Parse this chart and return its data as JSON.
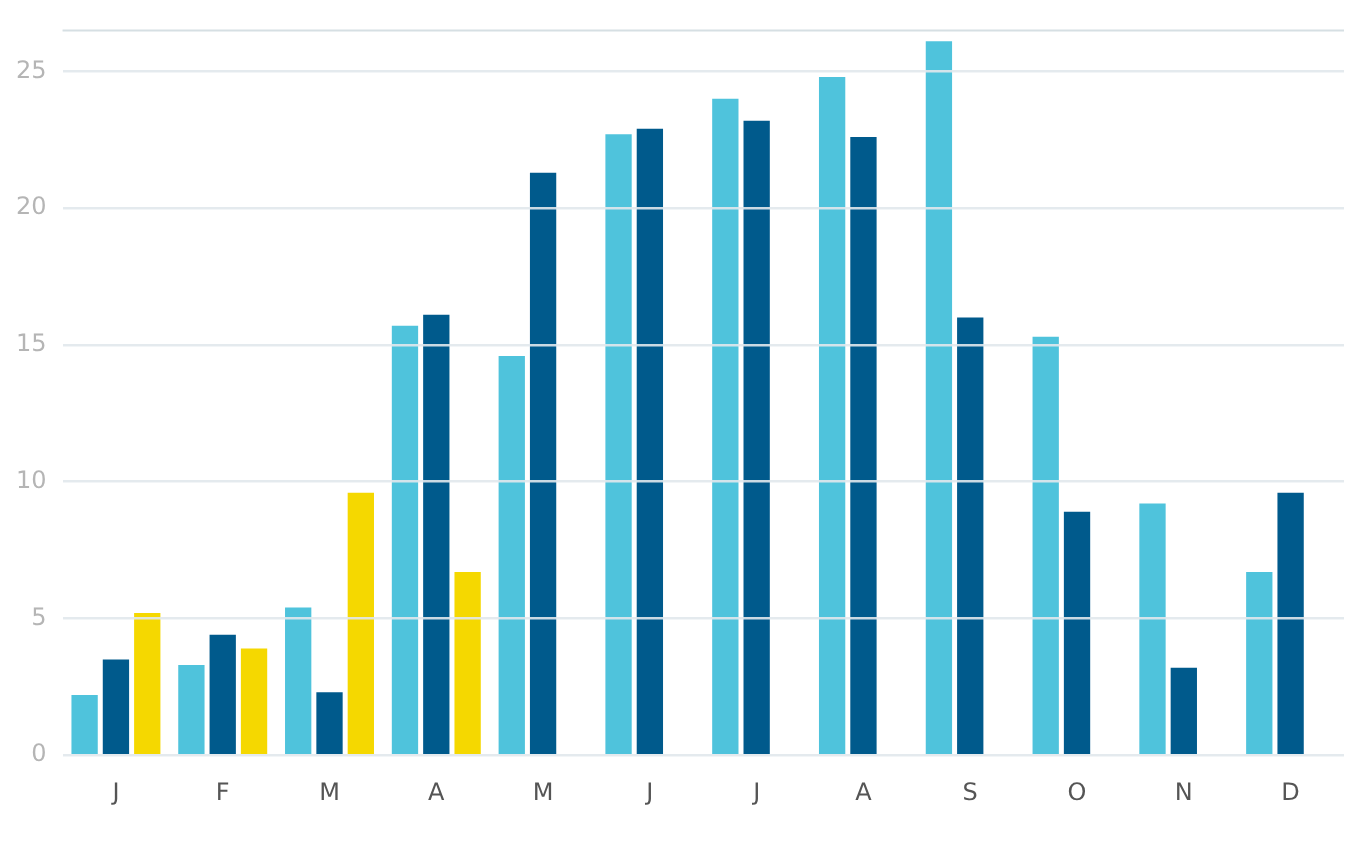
{
  "chart_data": {
    "type": "bar",
    "categories": [
      "J",
      "F",
      "M",
      "A",
      "M",
      "J",
      "J",
      "A",
      "S",
      "O",
      "N",
      "D"
    ],
    "series": [
      {
        "color": "#4fc3dc",
        "values": [
          2.2,
          3.3,
          5.4,
          15.7,
          14.6,
          22.7,
          24.0,
          24.8,
          26.1,
          15.3,
          9.2,
          6.7
        ]
      },
      {
        "color": "#005a8c",
        "values": [
          3.5,
          4.4,
          2.3,
          16.1,
          21.3,
          22.9,
          23.2,
          22.6,
          16.0,
          8.9,
          3.2,
          9.6
        ]
      },
      {
        "color": "#f5d800",
        "values": [
          5.2,
          3.9,
          9.6,
          6.7,
          null,
          null,
          null,
          null,
          null,
          null,
          null,
          null
        ]
      }
    ],
    "ylim": [
      0,
      26.5
    ],
    "yticks": [
      0,
      5,
      10,
      15,
      20,
      25
    ],
    "grid": "y",
    "legend": false
  }
}
